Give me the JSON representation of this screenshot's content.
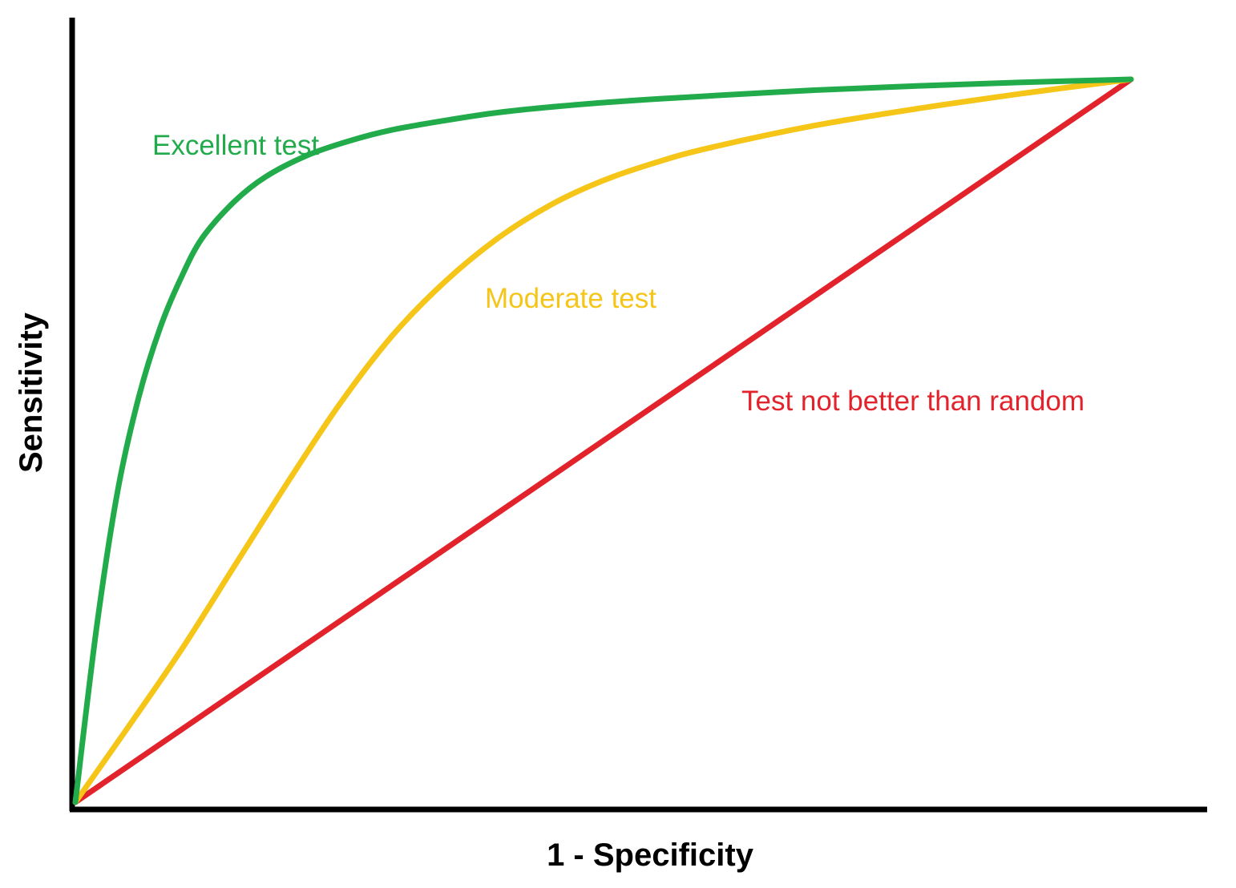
{
  "chart_data": {
    "type": "line",
    "title": "",
    "xlabel": "1 - Specificity",
    "ylabel": "Sensitivity",
    "xlim": [
      0,
      1
    ],
    "ylim": [
      0,
      1
    ],
    "grid": false,
    "legend": "none",
    "series": [
      {
        "name": "Excellent test",
        "color": "#22ab4b",
        "x": [
          0,
          0.02,
          0.04,
          0.06,
          0.08,
          0.1,
          0.12,
          0.15,
          0.18,
          0.22,
          0.26,
          0.3,
          0.35,
          0.4,
          0.46,
          0.53,
          0.6,
          0.7,
          0.8,
          0.9,
          1.0
        ],
        "y": [
          0,
          0.24,
          0.43,
          0.56,
          0.655,
          0.725,
          0.78,
          0.83,
          0.865,
          0.895,
          0.915,
          0.93,
          0.943,
          0.954,
          0.963,
          0.971,
          0.977,
          0.985,
          0.991,
          0.996,
          1.0
        ]
      },
      {
        "name": "Moderate test",
        "color": "#f5c518",
        "x": [
          0,
          0.05,
          0.1,
          0.15,
          0.2,
          0.25,
          0.3,
          0.35,
          0.4,
          0.45,
          0.5,
          0.55,
          0.6,
          0.7,
          0.8,
          0.9,
          1.0
        ],
        "y": [
          0,
          0.104,
          0.21,
          0.325,
          0.44,
          0.55,
          0.645,
          0.72,
          0.78,
          0.826,
          0.86,
          0.885,
          0.905,
          0.936,
          0.96,
          0.981,
          1.0
        ]
      },
      {
        "name": "Test not better than random",
        "color": "#e3232c",
        "x": [
          0,
          1.0
        ],
        "y": [
          0,
          1.0
        ]
      }
    ]
  }
}
